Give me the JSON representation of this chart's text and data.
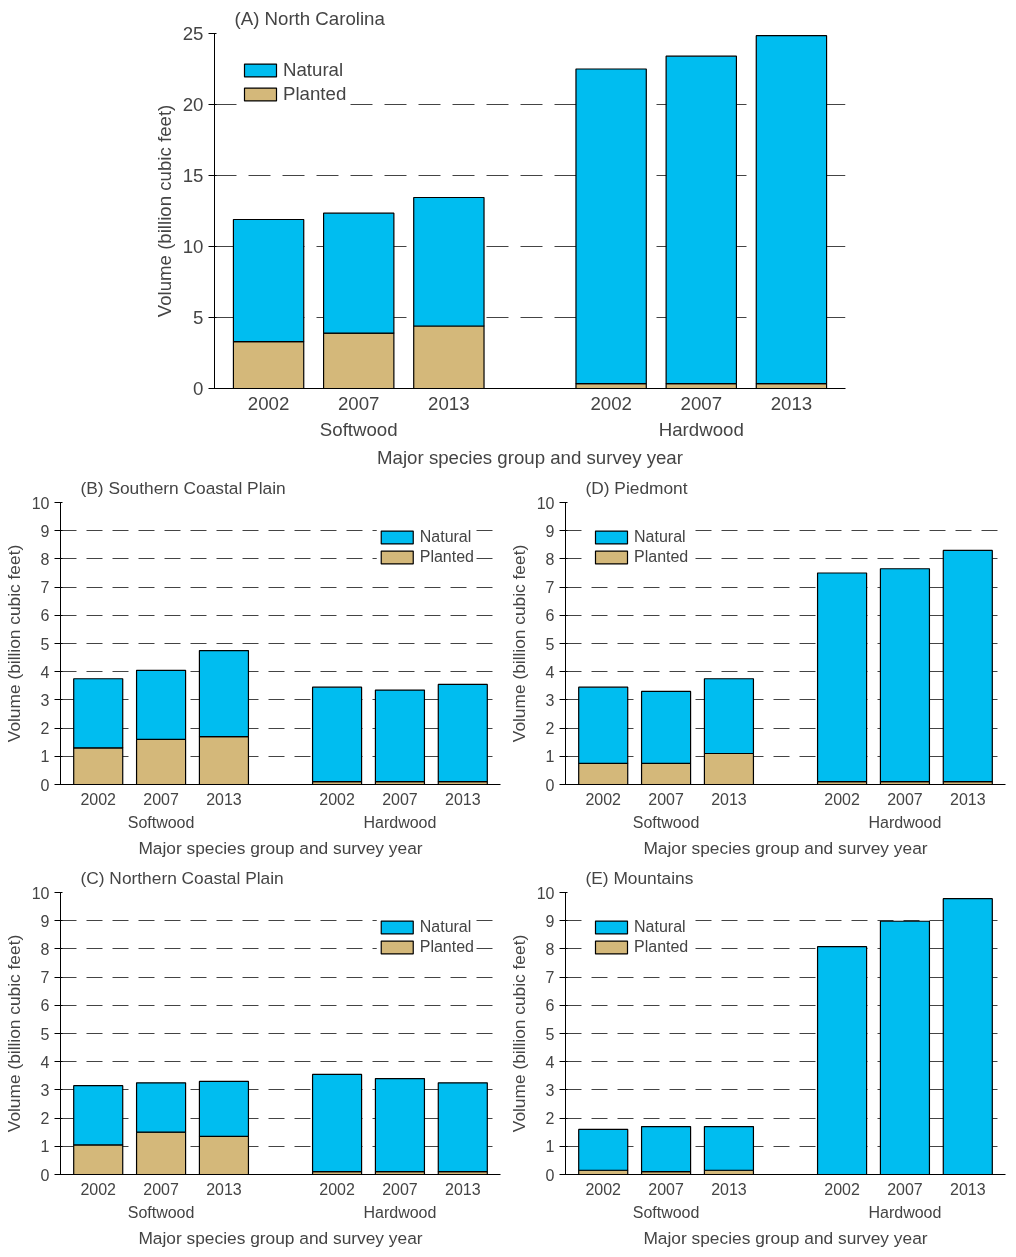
{
  "chart_data": [
    {
      "type": "bar",
      "title": "(A) North Carolina",
      "categories": [
        "2002",
        "2007",
        "2013",
        "2002",
        "2007",
        "2013"
      ],
      "xlabel": "Major species group and survey year",
      "ylabel": "Volume (billion cubic feet)",
      "stacked": true,
      "ylim": [
        0,
        25
      ],
      "yticks": [
        0,
        5,
        10,
        15,
        20,
        25
      ],
      "grid": "y",
      "legend": "top left",
      "annotations": [
        "Softwood",
        "Hardwood"
      ],
      "series": [
        {
          "name": "Planted",
          "color": "#d4b87a",
          "values": [
            3.3,
            3.9,
            4.4,
            0.35,
            0.35,
            0.35
          ]
        },
        {
          "name": "Natural",
          "color": "#00bdf0",
          "values": [
            8.6,
            8.45,
            9.05,
            22.15,
            23.05,
            24.5
          ]
        }
      ]
    },
    {
      "type": "bar",
      "title": "(B) Southern Coastal Plain",
      "categories": [
        "2002",
        "2007",
        "2013",
        "2002",
        "2007",
        "2013"
      ],
      "xlabel": "Major species group and survey year",
      "ylabel": "Volume (billion cubic feet)",
      "stacked": true,
      "ylim": [
        0,
        10
      ],
      "yticks": [
        0,
        1,
        2,
        3,
        4,
        5,
        6,
        7,
        8,
        9,
        10
      ],
      "grid": "y",
      "legend": "top right",
      "annotations": [
        "Softwood",
        "Hardwood"
      ],
      "series": [
        {
          "name": "Planted",
          "color": "#d4b87a",
          "values": [
            1.3,
            1.6,
            1.7,
            0.1,
            0.1,
            0.1
          ]
        },
        {
          "name": "Natural",
          "color": "#00bdf0",
          "values": [
            2.45,
            2.45,
            3.05,
            3.35,
            3.25,
            3.45
          ]
        }
      ]
    },
    {
      "type": "bar",
      "title": "(D) Piedmont",
      "categories": [
        "2002",
        "2007",
        "2013",
        "2002",
        "2007",
        "2013"
      ],
      "xlabel": "Major species group and survey year",
      "ylabel": "Volume (billion cubic feet)",
      "stacked": true,
      "ylim": [
        0,
        10
      ],
      "yticks": [
        0,
        1,
        2,
        3,
        4,
        5,
        6,
        7,
        8,
        9,
        10
      ],
      "grid": "y",
      "legend": "top left",
      "annotations": [
        "Softwood",
        "Hardwood"
      ],
      "series": [
        {
          "name": "Planted",
          "color": "#d4b87a",
          "values": [
            0.75,
            0.75,
            1.1,
            0.1,
            0.1,
            0.1
          ]
        },
        {
          "name": "Natural",
          "color": "#00bdf0",
          "values": [
            2.7,
            2.55,
            2.65,
            7.4,
            7.55,
            8.2
          ]
        }
      ]
    },
    {
      "type": "bar",
      "title": "(C) Northern Coastal Plain",
      "categories": [
        "2002",
        "2007",
        "2013",
        "2002",
        "2007",
        "2013"
      ],
      "xlabel": "Major species group and survey year",
      "ylabel": "Volume (billion cubic feet)",
      "stacked": true,
      "ylim": [
        0,
        10
      ],
      "yticks": [
        0,
        1,
        2,
        3,
        4,
        5,
        6,
        7,
        8,
        9,
        10
      ],
      "grid": "y",
      "legend": "top right",
      "annotations": [
        "Softwood",
        "Hardwood"
      ],
      "series": [
        {
          "name": "Planted",
          "color": "#d4b87a",
          "values": [
            1.05,
            1.5,
            1.35,
            0.1,
            0.1,
            0.1
          ]
        },
        {
          "name": "Natural",
          "color": "#00bdf0",
          "values": [
            2.1,
            1.75,
            1.95,
            3.45,
            3.3,
            3.15
          ]
        }
      ]
    },
    {
      "type": "bar",
      "title": "(E) Mountains",
      "categories": [
        "2002",
        "2007",
        "2013",
        "2002",
        "2007",
        "2013"
      ],
      "xlabel": "Major species group and survey year",
      "ylabel": "Volume (billion cubic feet)",
      "stacked": true,
      "ylim": [
        0,
        10
      ],
      "yticks": [
        0,
        1,
        2,
        3,
        4,
        5,
        6,
        7,
        8,
        9,
        10
      ],
      "grid": "y",
      "legend": "top left",
      "annotations": [
        "Softwood",
        "Hardwood"
      ],
      "series": [
        {
          "name": "Planted",
          "color": "#d4b87a",
          "values": [
            0.15,
            0.1,
            0.15,
            null,
            null,
            null
          ]
        },
        {
          "name": "Natural",
          "color": "#00bdf0",
          "values": [
            1.45,
            1.6,
            1.55,
            8.08,
            8.98,
            9.78
          ]
        }
      ]
    }
  ]
}
